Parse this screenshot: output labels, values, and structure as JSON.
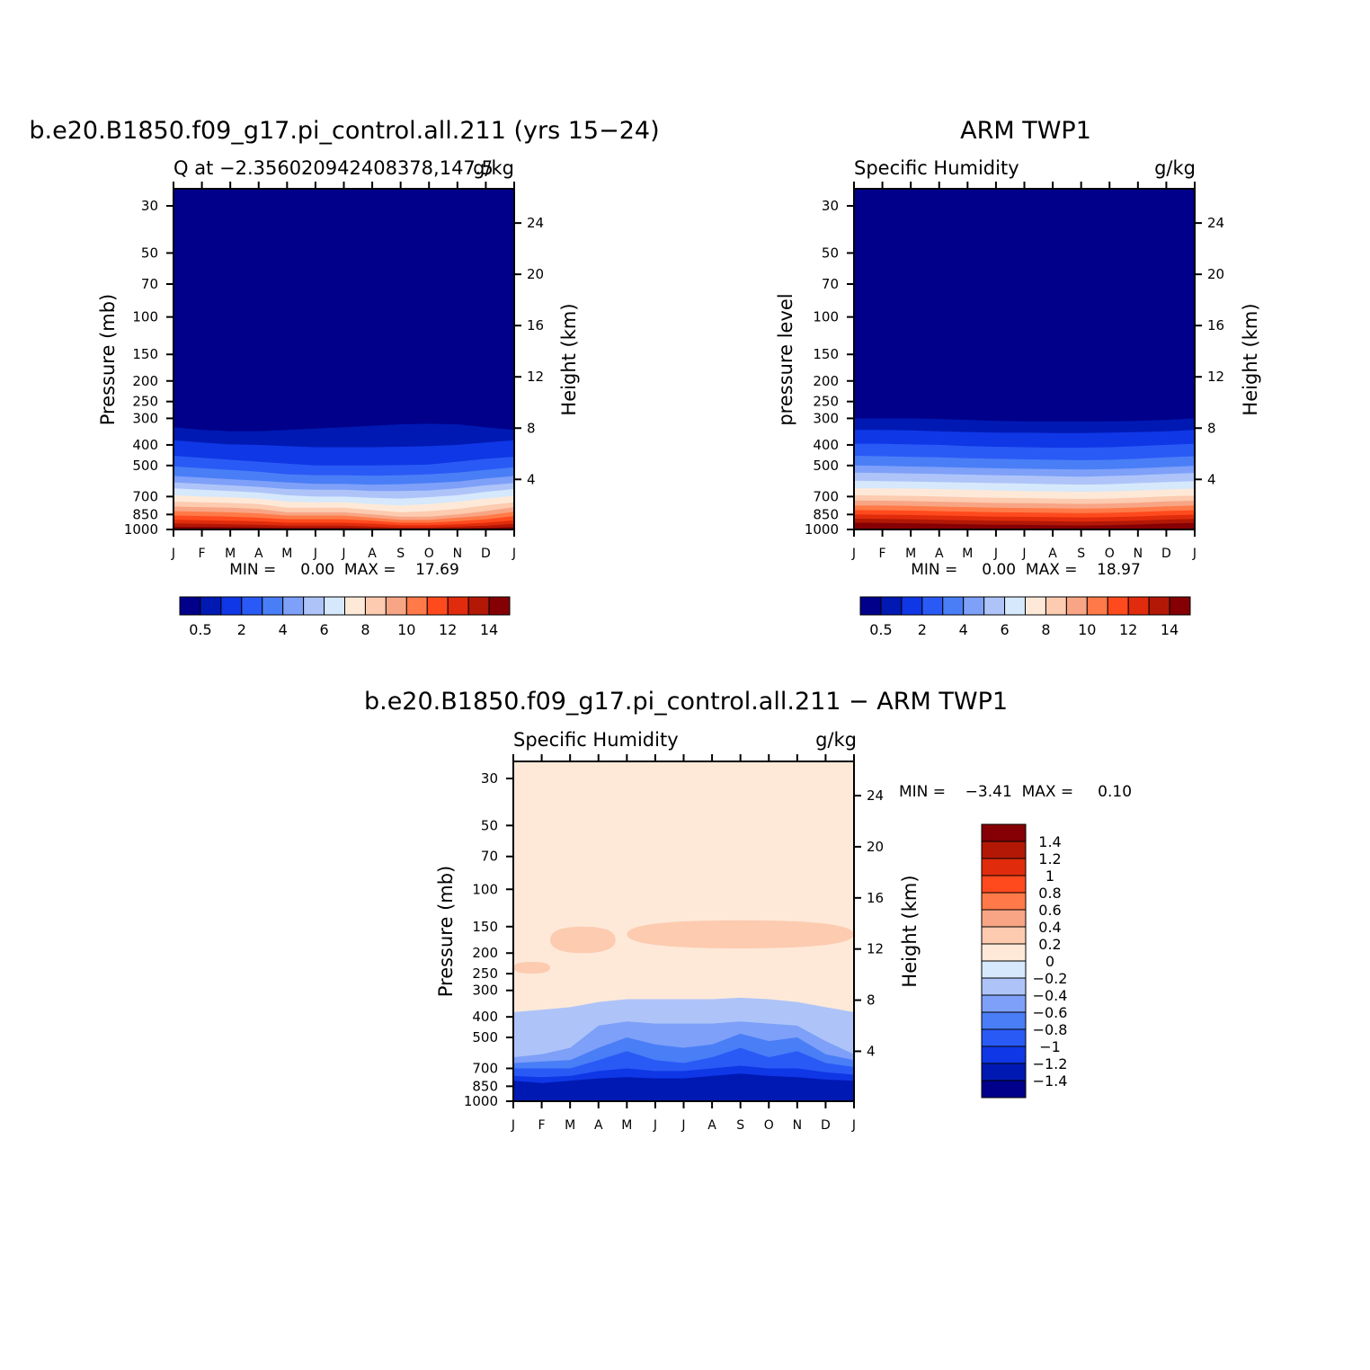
{
  "colors": {
    "seq": [
      "#00008a",
      "#0019b3",
      "#0f37e6",
      "#2a5af5",
      "#4a7ef7",
      "#7ea0f8",
      "#aec4f9",
      "#d6e8fb",
      "#fee9d8",
      "#fccbb0",
      "#f8a585",
      "#ff7a48",
      "#ff4a1e",
      "#e02c0c",
      "#b21805",
      "#850004"
    ],
    "diff": [
      "#00008a",
      "#0019b3",
      "#0f37e6",
      "#2a5af5",
      "#4a7ef7",
      "#7ea0f8",
      "#aec4f9",
      "#d6e8fb",
      "#fee9d8",
      "#fccbb0",
      "#f8a585",
      "#ff7a48",
      "#ff4a1e",
      "#e02c0c",
      "#b21805",
      "#850004"
    ]
  },
  "chart_data": [
    {
      "type": "heatmap",
      "title": "b.e20.B1850.f09_g17.pi_control.all.211 (yrs 15−24)",
      "subtitle_left": "Q at −2.356020942408378,147.5",
      "subtitle_right": "g/kg",
      "ylabel": "Pressure (mb)",
      "ylabel_right": "Height (km)",
      "stats": "MIN =     0.00  MAX =    17.69",
      "x_ticks": [
        "J",
        "F",
        "M",
        "A",
        "M",
        "J",
        "J",
        "A",
        "S",
        "O",
        "N",
        "D",
        "J"
      ],
      "y_ticks": [
        "30",
        "50",
        "70",
        "100",
        "150",
        "200",
        "250",
        "300",
        "400",
        "500",
        "700",
        "850",
        "1000"
      ],
      "y_ticks_right": [
        "24",
        "20",
        "16",
        "12",
        "8",
        "4"
      ],
      "colorbar_labels": [
        "0.5",
        "2",
        "4",
        "6",
        "8",
        "10",
        "12",
        "14"
      ],
      "bands": [
        {
          "level": "0.5",
          "mb": [
            330,
            340,
            345,
            345,
            340,
            335,
            330,
            325,
            320,
            318,
            320,
            330,
            340
          ]
        },
        {
          "level": "1",
          "mb": [
            380,
            390,
            398,
            400,
            405,
            410,
            410,
            410,
            408,
            405,
            400,
            390,
            380
          ]
        },
        {
          "level": "2",
          "mb": [
            450,
            460,
            470,
            480,
            490,
            500,
            500,
            500,
            498,
            495,
            480,
            465,
            455
          ]
        },
        {
          "level": "3",
          "mb": [
            505,
            515,
            525,
            535,
            550,
            555,
            555,
            558,
            555,
            550,
            540,
            525,
            510
          ]
        },
        {
          "level": "4",
          "mb": [
            560,
            570,
            580,
            590,
            600,
            610,
            610,
            615,
            612,
            605,
            595,
            575,
            560
          ]
        },
        {
          "level": "5",
          "mb": [
            600,
            610,
            620,
            630,
            645,
            650,
            650,
            660,
            660,
            655,
            640,
            620,
            605
          ]
        },
        {
          "level": "6",
          "mb": [
            640,
            650,
            660,
            670,
            690,
            700,
            700,
            710,
            715,
            705,
            690,
            665,
            645
          ]
        },
        {
          "level": "7",
          "mb": [
            690,
            700,
            705,
            715,
            740,
            745,
            745,
            760,
            770,
            760,
            740,
            715,
            695
          ]
        },
        {
          "level": "8",
          "mb": [
            740,
            745,
            750,
            760,
            790,
            790,
            790,
            810,
            830,
            820,
            800,
            770,
            745
          ]
        },
        {
          "level": "9",
          "mb": [
            780,
            785,
            790,
            800,
            830,
            830,
            830,
            850,
            870,
            870,
            850,
            820,
            785
          ]
        },
        {
          "level": "10",
          "mb": [
            820,
            825,
            830,
            840,
            860,
            860,
            860,
            880,
            900,
            900,
            880,
            860,
            825
          ]
        },
        {
          "level": "11",
          "mb": [
            860,
            865,
            870,
            880,
            895,
            895,
            895,
            910,
            930,
            930,
            915,
            895,
            865
          ]
        },
        {
          "level": "12",
          "mb": [
            900,
            905,
            910,
            915,
            930,
            930,
            930,
            940,
            955,
            955,
            945,
            930,
            905
          ]
        },
        {
          "level": "13",
          "mb": [
            935,
            940,
            945,
            950,
            960,
            960,
            960,
            970,
            980,
            980,
            970,
            960,
            940
          ]
        },
        {
          "level": "14",
          "mb": [
            970,
            972,
            975,
            978,
            985,
            985,
            985,
            990,
            995,
            995,
            990,
            985,
            972
          ]
        }
      ]
    },
    {
      "type": "heatmap",
      "title": "ARM TWP1",
      "subtitle_left": "Specific Humidity",
      "subtitle_right": "g/kg",
      "ylabel": "pressure level",
      "ylabel_right": "Height (km)",
      "stats": "MIN =     0.00  MAX =    18.97",
      "x_ticks": [
        "J",
        "F",
        "M",
        "A",
        "M",
        "J",
        "J",
        "A",
        "S",
        "O",
        "N",
        "D",
        "J"
      ],
      "y_ticks": [
        "30",
        "50",
        "70",
        "100",
        "150",
        "200",
        "250",
        "300",
        "400",
        "500",
        "700",
        "850",
        "1000"
      ],
      "y_ticks_right": [
        "24",
        "20",
        "16",
        "12",
        "8",
        "4"
      ],
      "colorbar_labels": [
        "0.5",
        "2",
        "4",
        "6",
        "8",
        "10",
        "12",
        "14"
      ],
      "bands": [
        {
          "level": "0.5",
          "mb": [
            300,
            300,
            300,
            302,
            305,
            308,
            310,
            310,
            310,
            310,
            308,
            305,
            300
          ]
        },
        {
          "level": "1",
          "mb": [
            340,
            340,
            342,
            345,
            348,
            350,
            350,
            352,
            352,
            350,
            348,
            345,
            340
          ]
        },
        {
          "level": "2",
          "mb": [
            395,
            395,
            398,
            400,
            405,
            408,
            410,
            412,
            412,
            410,
            405,
            400,
            395
          ]
        },
        {
          "level": "3",
          "mb": [
            450,
            452,
            455,
            458,
            462,
            465,
            468,
            470,
            472,
            470,
            465,
            458,
            452
          ]
        },
        {
          "level": "4",
          "mb": [
            500,
            502,
            505,
            508,
            512,
            515,
            518,
            520,
            522,
            520,
            515,
            508,
            502
          ]
        },
        {
          "level": "5",
          "mb": [
            540,
            542,
            545,
            548,
            552,
            555,
            558,
            562,
            565,
            560,
            555,
            548,
            542
          ]
        },
        {
          "level": "6",
          "mb": [
            590,
            592,
            595,
            598,
            602,
            605,
            608,
            612,
            615,
            612,
            605,
            598,
            592
          ]
        },
        {
          "level": "7",
          "mb": [
            640,
            640,
            642,
            645,
            650,
            655,
            660,
            662,
            665,
            662,
            655,
            648,
            642
          ]
        },
        {
          "level": "8",
          "mb": [
            690,
            692,
            695,
            700,
            705,
            710,
            712,
            715,
            718,
            715,
            708,
            698,
            692
          ]
        },
        {
          "level": "9",
          "mb": [
            730,
            732,
            735,
            740,
            745,
            750,
            752,
            755,
            758,
            755,
            748,
            738,
            732
          ]
        },
        {
          "level": "10",
          "mb": [
            770,
            772,
            775,
            780,
            785,
            790,
            792,
            795,
            798,
            795,
            788,
            778,
            772
          ]
        },
        {
          "level": "11",
          "mb": [
            810,
            812,
            815,
            820,
            825,
            830,
            832,
            835,
            838,
            835,
            828,
            818,
            812
          ]
        },
        {
          "level": "12",
          "mb": [
            850,
            852,
            855,
            860,
            865,
            870,
            872,
            875,
            878,
            875,
            868,
            858,
            852
          ]
        },
        {
          "level": "13",
          "mb": [
            890,
            892,
            895,
            900,
            905,
            910,
            912,
            915,
            918,
            915,
            908,
            898,
            892
          ]
        },
        {
          "level": "14",
          "mb": [
            930,
            932,
            935,
            940,
            945,
            950,
            952,
            955,
            958,
            955,
            948,
            938,
            932
          ]
        }
      ]
    },
    {
      "type": "heatmap",
      "title": "b.e20.B1850.f09_g17.pi_control.all.211 − ARM TWP1",
      "subtitle_left": "Specific Humidity",
      "subtitle_right": "g/kg",
      "ylabel": "Pressure (mb)",
      "ylabel_right": "Height (km)",
      "stats": "MIN =    −3.41  MAX =     0.10",
      "x_ticks": [
        "J",
        "F",
        "M",
        "A",
        "M",
        "J",
        "J",
        "A",
        "S",
        "O",
        "N",
        "D",
        "J"
      ],
      "y_ticks": [
        "30",
        "50",
        "70",
        "100",
        "150",
        "200",
        "250",
        "300",
        "400",
        "500",
        "700",
        "850",
        "1000"
      ],
      "y_ticks_right": [
        "24",
        "20",
        "16",
        "12",
        "8",
        "4"
      ],
      "colorbar_labels": [
        "1.4",
        "1.2",
        "1",
        "0.8",
        "0.6",
        "0.4",
        "0.2",
        "0",
        "−0.2",
        "−0.4",
        "−0.6",
        "−0.8",
        "−1",
        "−1.2",
        "−1.4"
      ],
      "background_level": "0",
      "bands": [
        {
          "level": "−0.4",
          "mb": [
            380,
            370,
            360,
            340,
            330,
            330,
            330,
            330,
            325,
            330,
            340,
            360,
            380
          ]
        },
        {
          "level": "−0.6",
          "mb": [
            620,
            600,
            560,
            440,
            420,
            430,
            430,
            430,
            420,
            430,
            440,
            520,
            600
          ]
        },
        {
          "level": "−0.8",
          "mb": [
            660,
            650,
            640,
            560,
            500,
            540,
            560,
            540,
            480,
            520,
            500,
            600,
            640
          ]
        },
        {
          "level": "−1",
          "mb": [
            700,
            700,
            700,
            640,
            580,
            640,
            660,
            620,
            560,
            620,
            580,
            660,
            690
          ]
        },
        {
          "level": "−1.2",
          "mb": [
            760,
            770,
            760,
            720,
            700,
            720,
            720,
            700,
            680,
            700,
            700,
            730,
            750
          ]
        },
        {
          "level": "−1.4",
          "mb": [
            800,
            820,
            800,
            780,
            770,
            780,
            780,
            760,
            740,
            760,
            770,
            790,
            800
          ]
        }
      ],
      "positive_blobs": [
        {
          "level": "0.2",
          "mb_top": 150,
          "mb_bottom": 200,
          "months": "F–A"
        },
        {
          "level": "0.2",
          "mb_top": 140,
          "mb_bottom": 190,
          "months": "M–D"
        },
        {
          "level": "0.2",
          "mb_top": 220,
          "mb_bottom": 250,
          "months": "J–F, D–J"
        }
      ]
    }
  ]
}
